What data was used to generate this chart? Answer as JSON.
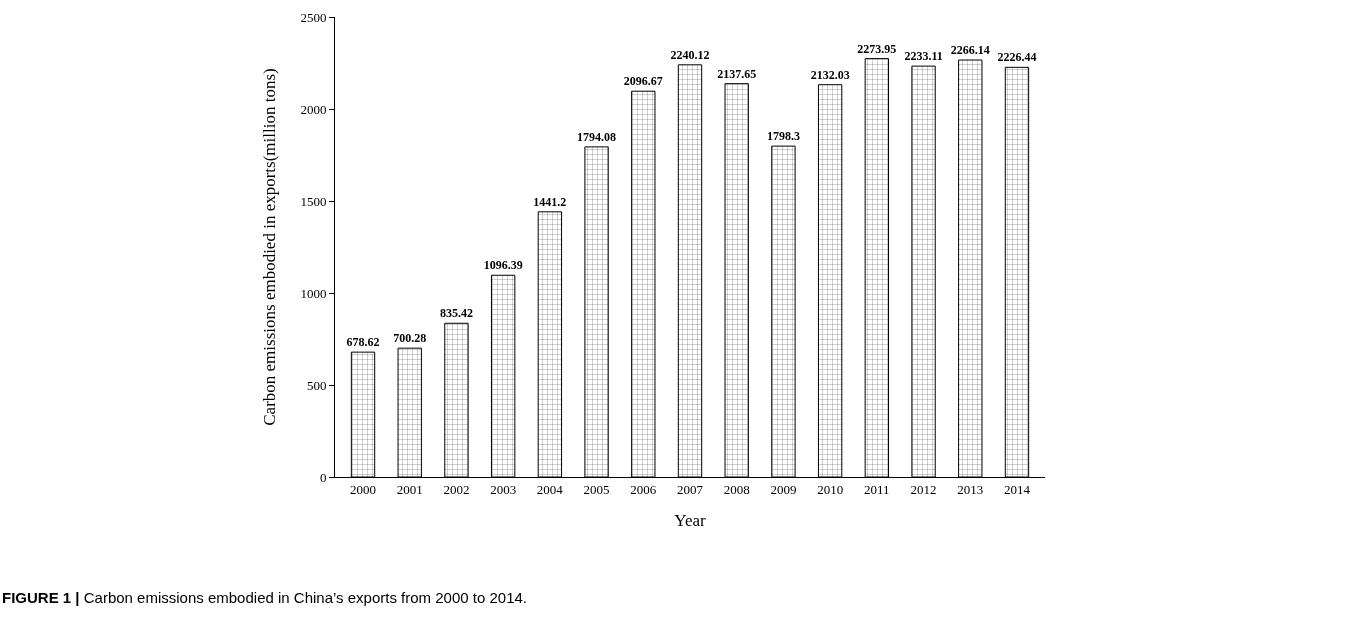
{
  "chart_data": {
    "type": "bar",
    "xlabel": "Year",
    "ylabel": "Carbon emissions embodied in exports(million tons)",
    "categories": [
      "2000",
      "2001",
      "2002",
      "2003",
      "2004",
      "2005",
      "2006",
      "2007",
      "2008",
      "2009",
      "2010",
      "2011",
      "2012",
      "2013",
      "2014"
    ],
    "values": [
      678.62,
      700.28,
      835.42,
      1096.39,
      1441.2,
      1794.08,
      2096.67,
      2240.12,
      2137.65,
      1798.3,
      2132.03,
      2273.95,
      2233.11,
      2266.14,
      2226.44
    ],
    "color": "#000000",
    "ylim": [
      0,
      2500
    ],
    "yticks": [
      0,
      500,
      1000,
      1500,
      2000,
      2500
    ],
    "data_labels": true,
    "legend": false,
    "annotations": [
      "FIGURE 1 | Carbon emissions embodied in China’s exports from 2000 to 2014."
    ]
  }
}
